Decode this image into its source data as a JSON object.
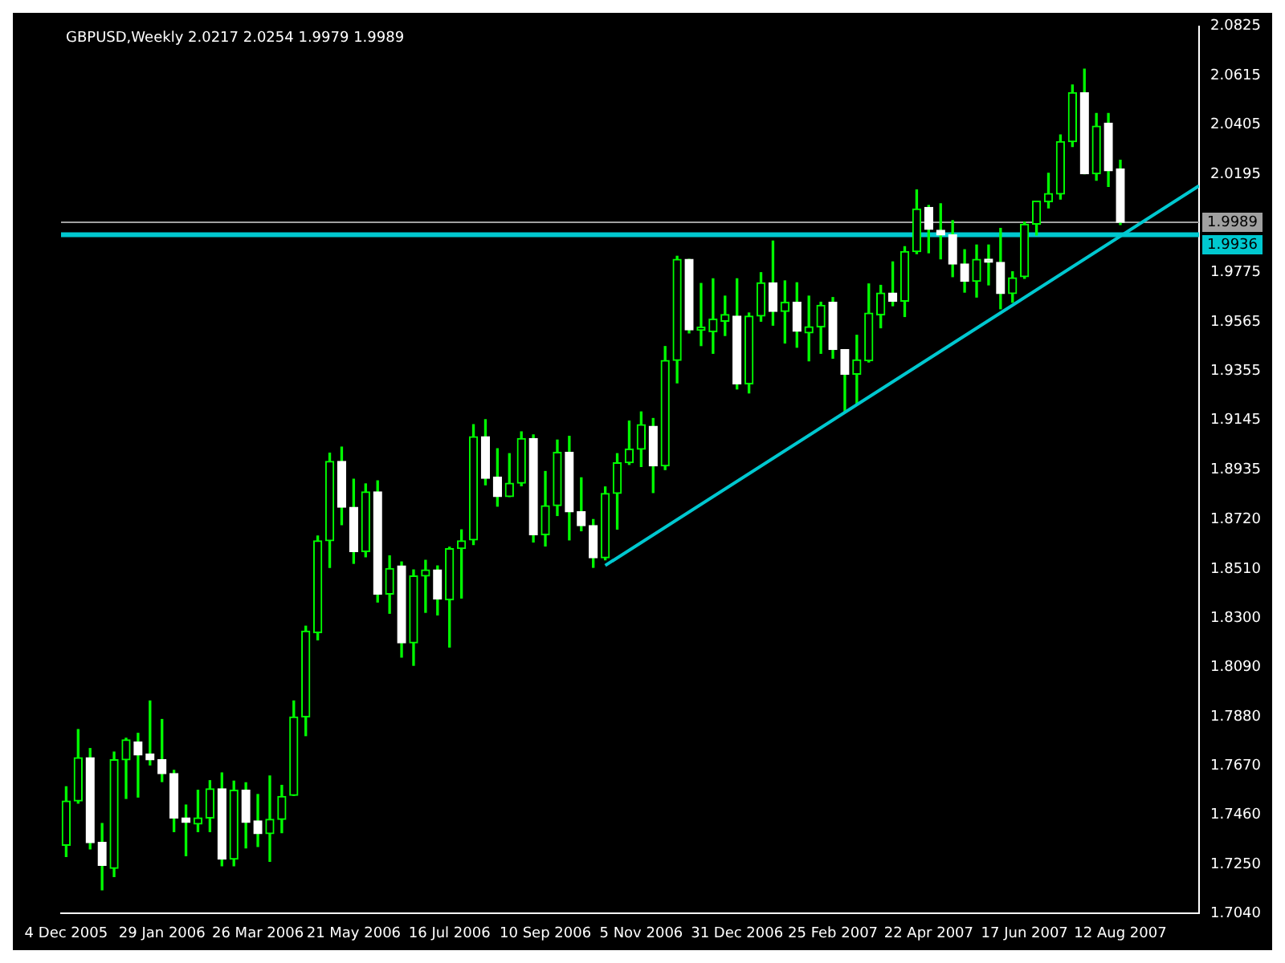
{
  "chart_data": {
    "type": "candlestick",
    "title": "GBPUSD,Weekly 2.0217 2.0254 1.9979 1.9989",
    "color": "#00ff00",
    "x": [
      "2005-12-04",
      "2005-12-11",
      "2005-12-18",
      "2005-12-25",
      "2006-01-01",
      "2006-01-08",
      "2006-01-15",
      "2006-01-22",
      "2006-01-29",
      "2006-02-05",
      "2006-02-12",
      "2006-02-19",
      "2006-02-26",
      "2006-03-05",
      "2006-03-12",
      "2006-03-19",
      "2006-03-26",
      "2006-04-02",
      "2006-04-09",
      "2006-04-16",
      "2006-04-23",
      "2006-04-30",
      "2006-05-07",
      "2006-05-14",
      "2006-05-21",
      "2006-05-28",
      "2006-06-04",
      "2006-06-11",
      "2006-06-18",
      "2006-06-25",
      "2006-07-02",
      "2006-07-09",
      "2006-07-16",
      "2006-07-23",
      "2006-07-30",
      "2006-08-06",
      "2006-08-13",
      "2006-08-20",
      "2006-08-27",
      "2006-09-03",
      "2006-09-10",
      "2006-09-17",
      "2006-09-24",
      "2006-10-01",
      "2006-10-08",
      "2006-10-15",
      "2006-10-22",
      "2006-10-29",
      "2006-11-05",
      "2006-11-12",
      "2006-11-19",
      "2006-11-26",
      "2006-12-03",
      "2006-12-10",
      "2006-12-17",
      "2006-12-24",
      "2006-12-31",
      "2007-01-07",
      "2007-01-14",
      "2007-01-21",
      "2007-01-28",
      "2007-02-04",
      "2007-02-11",
      "2007-02-18",
      "2007-02-25",
      "2007-03-04",
      "2007-03-11",
      "2007-03-18",
      "2007-03-25",
      "2007-04-01",
      "2007-04-08",
      "2007-04-15",
      "2007-04-22",
      "2007-04-29",
      "2007-05-06",
      "2007-05-13",
      "2007-05-20",
      "2007-05-27",
      "2007-06-03",
      "2007-06-10",
      "2007-06-17",
      "2007-06-24",
      "2007-07-01",
      "2007-07-08",
      "2007-07-15",
      "2007-07-22",
      "2007-07-29",
      "2007-08-05",
      "2007-08-12"
    ],
    "ohlc": [
      [
        1.7331,
        1.7581,
        1.7283,
        1.752
      ],
      [
        1.752,
        1.7825,
        1.7511,
        1.7705
      ],
      [
        1.7705,
        1.7744,
        1.7316,
        1.7342
      ],
      [
        1.7344,
        1.7424,
        1.7141,
        1.7246
      ],
      [
        1.7233,
        1.7729,
        1.7198,
        1.7696
      ],
      [
        1.7696,
        1.7788,
        1.7531,
        1.7781
      ],
      [
        1.7772,
        1.7809,
        1.7537,
        1.7716
      ],
      [
        1.772,
        1.7947,
        1.7674,
        1.7696
      ],
      [
        1.7696,
        1.7868,
        1.7603,
        1.7637
      ],
      [
        1.7637,
        1.7651,
        1.7389,
        1.7448
      ],
      [
        1.7448,
        1.7503,
        1.7287,
        1.7429
      ],
      [
        1.7422,
        1.7566,
        1.7389,
        1.7448
      ],
      [
        1.7448,
        1.7607,
        1.7389,
        1.7572
      ],
      [
        1.7572,
        1.764,
        1.7244,
        1.7272
      ],
      [
        1.7272,
        1.7605,
        1.7244,
        1.7566
      ],
      [
        1.7566,
        1.7598,
        1.732,
        1.7429
      ],
      [
        1.7435,
        1.7548,
        1.7326,
        1.7381
      ],
      [
        1.7381,
        1.7627,
        1.7263,
        1.7442
      ],
      [
        1.7442,
        1.7587,
        1.7385,
        1.754
      ],
      [
        1.7544,
        1.7947,
        1.7544,
        1.7879
      ],
      [
        1.7879,
        1.8266,
        1.7799,
        1.8245
      ],
      [
        1.8238,
        1.8651,
        1.8208,
        1.863
      ],
      [
        1.863,
        1.9004,
        1.8517,
        1.8969
      ],
      [
        1.8969,
        1.903,
        1.8699,
        1.8773
      ],
      [
        1.8773,
        1.8893,
        1.8534,
        1.8584
      ],
      [
        1.8584,
        1.8873,
        1.8562,
        1.8839
      ],
      [
        1.8839,
        1.8886,
        1.8369,
        1.8403
      ],
      [
        1.8403,
        1.8566,
        1.8321,
        1.8512
      ],
      [
        1.8523,
        1.854,
        1.8134,
        1.8195
      ],
      [
        1.8195,
        1.8506,
        1.8099,
        1.848
      ],
      [
        1.848,
        1.8547,
        1.8325,
        1.8506
      ],
      [
        1.8506,
        1.8523,
        1.8314,
        1.8382
      ],
      [
        1.8379,
        1.8603,
        1.8177,
        1.8597
      ],
      [
        1.8597,
        1.8677,
        1.8386,
        1.863
      ],
      [
        1.8634,
        1.9126,
        1.8614,
        1.9074
      ],
      [
        1.9074,
        1.9147,
        1.8869,
        1.8897
      ],
      [
        1.8902,
        1.9023,
        1.8778,
        1.8819
      ],
      [
        1.8819,
        1.9002,
        1.8819,
        1.8876
      ],
      [
        1.8876,
        1.9095,
        1.8865,
        1.9067
      ],
      [
        1.9067,
        1.9082,
        1.8625,
        1.8656
      ],
      [
        1.8656,
        1.8926,
        1.8608,
        1.878
      ],
      [
        1.878,
        1.906,
        1.8738,
        1.9008
      ],
      [
        1.9008,
        1.9076,
        1.8634,
        1.8754
      ],
      [
        1.8754,
        1.8899,
        1.8673,
        1.8695
      ],
      [
        1.8695,
        1.8721,
        1.8517,
        1.8558
      ],
      [
        1.8558,
        1.886,
        1.8549,
        1.8832
      ],
      [
        1.8832,
        1.9002,
        1.868,
        1.8963
      ],
      [
        1.8963,
        1.9141,
        1.8956,
        1.9021
      ],
      [
        1.9021,
        1.918,
        1.8947,
        1.9126
      ],
      [
        1.9119,
        1.9152,
        1.8836,
        1.895
      ],
      [
        1.895,
        1.9459,
        1.8934,
        1.94
      ],
      [
        1.94,
        1.9844,
        1.9304,
        1.9831
      ],
      [
        1.9831,
        1.9831,
        1.9517,
        1.953
      ],
      [
        1.9528,
        1.9728,
        1.9463,
        1.9528
      ],
      [
        1.9522,
        1.9748,
        1.943,
        1.9576
      ],
      [
        1.9567,
        1.9674,
        1.9506,
        1.9596
      ],
      [
        1.9589,
        1.9748,
        1.9278,
        1.93
      ],
      [
        1.93,
        1.9602,
        1.9261,
        1.9589
      ],
      [
        1.9589,
        1.9774,
        1.9567,
        1.9731
      ],
      [
        1.9731,
        1.9909,
        1.955,
        1.9609
      ],
      [
        1.9609,
        1.9739,
        1.9474,
        1.9648
      ],
      [
        1.9648,
        1.9731,
        1.9456,
        1.9524
      ],
      [
        1.9517,
        1.9674,
        1.9398,
        1.9543
      ],
      [
        1.9543,
        1.9648,
        1.943,
        1.9635
      ],
      [
        1.9648,
        1.9668,
        1.9409,
        1.9446
      ],
      [
        1.9446,
        1.9446,
        1.918,
        1.9341
      ],
      [
        1.9341,
        1.9507,
        1.9217,
        1.9402
      ],
      [
        1.9398,
        1.9726,
        1.9393,
        1.9602
      ],
      [
        1.9594,
        1.972,
        1.9539,
        1.9687
      ],
      [
        1.9687,
        1.982,
        1.9633,
        1.9652
      ],
      [
        1.9652,
        1.9885,
        1.9587,
        1.9864
      ],
      [
        1.9864,
        2.0127,
        1.9855,
        2.0046
      ],
      [
        2.0053,
        2.0061,
        1.9859,
        1.9959
      ],
      [
        1.9955,
        2.0068,
        1.9833,
        1.9935
      ],
      [
        1.9935,
        1.9996,
        1.9757,
        1.9811
      ],
      [
        1.9811,
        1.9872,
        1.9691,
        1.9737
      ],
      [
        1.9737,
        1.9892,
        1.967,
        1.9831
      ],
      [
        1.9831,
        1.9892,
        1.9722,
        1.9818
      ],
      [
        1.9818,
        1.9963,
        1.962,
        1.9685
      ],
      [
        1.9685,
        1.9778,
        1.9648,
        1.9752
      ],
      [
        1.9757,
        1.999,
        1.975,
        1.9981
      ],
      [
        1.9981,
        2.0079,
        1.9935,
        2.0079
      ],
      [
        2.0077,
        2.0198,
        2.005,
        2.0112
      ],
      [
        2.0109,
        2.0362,
        2.0088,
        2.0333
      ],
      [
        2.0333,
        2.0575,
        2.0312,
        2.0542
      ],
      [
        2.0542,
        2.0642,
        2.0196,
        2.0196
      ],
      [
        2.0196,
        2.0453,
        2.0168,
        2.0399
      ],
      [
        2.0412,
        2.0453,
        2.0142,
        2.0209
      ],
      [
        2.0217,
        2.0254,
        1.9979,
        1.9989
      ]
    ],
    "colors": [
      "#00ff00",
      "#00ff00",
      "#ffffff",
      "#ffffff",
      "#00ff00",
      "#00ff00",
      "#ffffff",
      "#ffffff",
      "#ffffff",
      "#ffffff",
      "#ffffff",
      "#00ff00",
      "#00ff00",
      "#ffffff",
      "#00ff00",
      "#ffffff",
      "#ffffff",
      "#00ff00",
      "#00ff00",
      "#00ff00",
      "#00ff00",
      "#00ff00",
      "#00ff00",
      "#ffffff",
      "#ffffff",
      "#00ff00",
      "#ffffff",
      "#00ff00",
      "#ffffff",
      "#00ff00",
      "#00ff00",
      "#ffffff",
      "#00ff00",
      "#00ff00",
      "#00ff00",
      "#ffffff",
      "#ffffff",
      "#00ff00",
      "#00ff00",
      "#ffffff",
      "#00ff00",
      "#00ff00",
      "#ffffff",
      "#ffffff",
      "#ffffff",
      "#00ff00",
      "#00ff00",
      "#00ff00",
      "#00ff00",
      "#ffffff",
      "#00ff00",
      "#00ff00",
      "#ffffff",
      "#00ff00",
      "#00ff00",
      "#00ff00",
      "#ffffff",
      "#00ff00",
      "#00ff00",
      "#ffffff",
      "#00ff00",
      "#ffffff",
      "#00ff00",
      "#00ff00",
      "#ffffff",
      "#ffffff",
      "#00ff00",
      "#00ff00",
      "#00ff00",
      "#ffffff",
      "#00ff00",
      "#00ff00",
      "#ffffff",
      "#ffffff",
      "#ffffff",
      "#ffffff",
      "#00ff00",
      "#ffffff",
      "#ffffff",
      "#00ff00",
      "#00ff00",
      "#00ff00",
      "#00ff00",
      "#00ff00",
      "#00ff00",
      "#ffffff",
      "#00ff00",
      "#ffffff",
      "#ffffff"
    ],
    "series": [
      {
        "type": "line",
        "color": "#00c8d0",
        "x": [
          "2006-10-15",
          "2007-05-06",
          "2007-09-27"
        ],
        "values": [
          1.8525,
          1.9472,
          2.0145
        ]
      }
    ],
    "ref_lines": [
      {
        "axis": "y",
        "value": 1.9989,
        "label": "1.9989",
        "color": "#a0a0a0"
      },
      {
        "axis": "y",
        "value": 1.9936,
        "label": "1.9936",
        "color": "#00c8d0"
      }
    ],
    "xlim": [
      "2005-12-01",
      "2007-09-27"
    ],
    "xticks": [
      {
        "value": "2005-12-04",
        "label": "4 Dec 2005"
      },
      {
        "value": "2006-01-29",
        "label": "29 Jan 2006"
      },
      {
        "value": "2006-03-26",
        "label": "26 Mar 2006"
      },
      {
        "value": "2006-05-21",
        "label": "21 May 2006"
      },
      {
        "value": "2006-07-16",
        "label": "16 Jul 2006"
      },
      {
        "value": "2006-09-10",
        "label": "10 Sep 2006"
      },
      {
        "value": "2006-11-05",
        "label": "5 Nov 2006"
      },
      {
        "value": "2006-12-31",
        "label": "31 Dec 2006"
      },
      {
        "value": "2007-02-25",
        "label": "25 Feb 2007"
      },
      {
        "value": "2007-04-22",
        "label": "22 Apr 2007"
      },
      {
        "value": "2007-06-17",
        "label": "17 Jun 2007"
      },
      {
        "value": "2007-08-12",
        "label": "12 Aug 2007"
      }
    ],
    "ylim": [
      1.704,
      2.0825
    ],
    "yticks": [
      {
        "value": 1.704,
        "label": "1.7040"
      },
      {
        "value": 1.725,
        "label": "1.7250"
      },
      {
        "value": 1.746,
        "label": "1.7460"
      },
      {
        "value": 1.767,
        "label": "1.7670"
      },
      {
        "value": 1.788,
        "label": "1.7880"
      },
      {
        "value": 1.809,
        "label": "1.8090"
      },
      {
        "value": 1.83,
        "label": "1.8300"
      },
      {
        "value": 1.851,
        "label": "1.8510"
      },
      {
        "value": 1.872,
        "label": "1.8720"
      },
      {
        "value": 1.8935,
        "label": "1.8935"
      },
      {
        "value": 1.9145,
        "label": "1.9145"
      },
      {
        "value": 1.9355,
        "label": "1.9355"
      },
      {
        "value": 1.9565,
        "label": "1.9565"
      },
      {
        "value": 1.9775,
        "label": "1.9775"
      },
      {
        "value": 2.0195,
        "label": "2.0195"
      },
      {
        "value": 2.0405,
        "label": "2.0405"
      },
      {
        "value": 2.0615,
        "label": "2.0615"
      },
      {
        "value": 2.0825,
        "label": "2.0825"
      }
    ],
    "grid": false,
    "legend": false,
    "marker": "none"
  }
}
